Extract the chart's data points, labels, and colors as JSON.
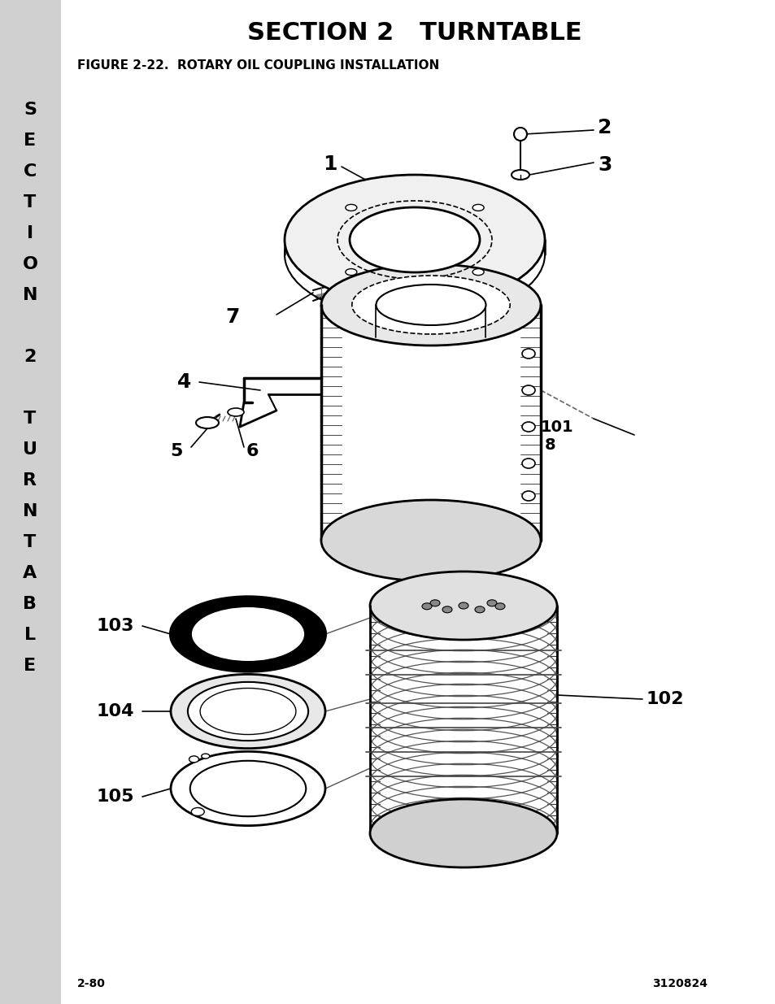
{
  "title": "SECTION 2   TURNTABLE",
  "figure_label": "FIGURE 2-22.  ROTARY OIL COUPLING INSTALLATION",
  "page_number": "2-80",
  "doc_number": "3120824",
  "sidebar_text": "SECTION\n2\nTURNTABLE",
  "sidebar_bg": "#d0d0d0",
  "bg_color": "#ffffff"
}
